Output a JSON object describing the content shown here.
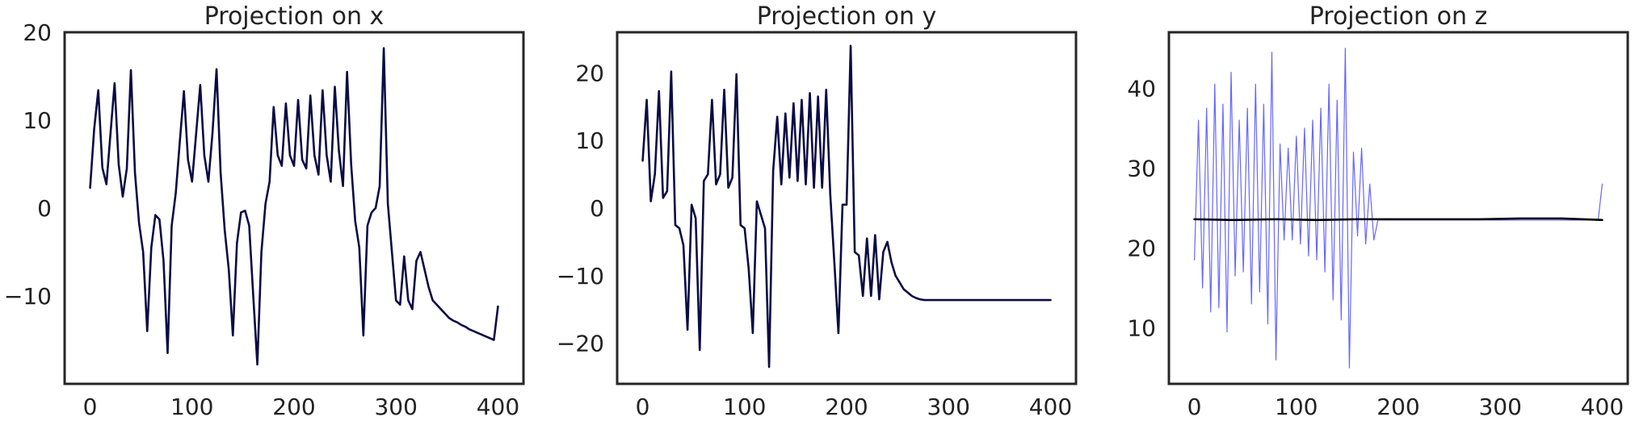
{
  "chart_data": [
    {
      "type": "line",
      "title": "Projection on x",
      "xlabel": "",
      "ylabel": "",
      "xlim": [
        -25,
        425
      ],
      "ylim": [
        -20,
        20
      ],
      "xticks": [
        0,
        100,
        200,
        300,
        400
      ],
      "yticks": [
        -10,
        0,
        10,
        20
      ],
      "xtick_labels": [
        "0",
        "100",
        "200",
        "300",
        "400"
      ],
      "ytick_labels": [
        "−10",
        "0",
        "10",
        "20"
      ],
      "grid": false,
      "series": [
        {
          "color": "#0b0b45",
          "x": [
            0,
            4,
            8,
            12,
            16,
            20,
            24,
            28,
            32,
            36,
            40,
            44,
            48,
            52,
            56,
            60,
            64,
            68,
            72,
            76,
            80,
            84,
            88,
            92,
            96,
            100,
            104,
            108,
            112,
            116,
            120,
            124,
            128,
            132,
            136,
            140,
            144,
            148,
            152,
            156,
            160,
            164,
            168,
            172,
            176,
            180,
            184,
            188,
            192,
            196,
            200,
            204,
            208,
            212,
            216,
            220,
            224,
            228,
            232,
            236,
            240,
            244,
            248,
            252,
            256,
            260,
            264,
            268,
            272,
            276,
            280,
            284,
            288,
            292,
            296,
            300,
            304,
            308,
            312,
            316,
            320,
            324,
            328,
            332,
            336,
            340,
            344,
            348,
            352,
            356,
            360,
            364,
            368,
            372,
            376,
            380,
            384,
            388,
            392,
            396,
            400
          ],
          "values": [
            2.3,
            9.0,
            13.4,
            4.6,
            2.7,
            8.5,
            14.2,
            5.0,
            1.3,
            4.5,
            15.7,
            4.0,
            -1.7,
            -5.0,
            -14.0,
            -4.5,
            -0.8,
            -1.3,
            -6.0,
            -16.5,
            -2.0,
            1.7,
            7.6,
            13.3,
            5.5,
            3.0,
            8.5,
            14.0,
            6.0,
            3.0,
            8.5,
            15.8,
            4.0,
            -2.5,
            -7.0,
            -14.5,
            -4.0,
            -0.5,
            -0.3,
            -2.0,
            -10.0,
            -17.8,
            -5.0,
            0.5,
            3.0,
            11.5,
            6.0,
            4.8,
            11.9,
            6.0,
            4.8,
            12.3,
            5.5,
            4.5,
            12.8,
            6.0,
            3.8,
            13.4,
            6.0,
            3.0,
            13.8,
            6.5,
            2.5,
            15.5,
            5.0,
            -1.5,
            -4.5,
            -14.5,
            -2.0,
            -0.5,
            0.0,
            2.5,
            18.2,
            0.5,
            -5.0,
            -10.5,
            -11.0,
            -5.5,
            -10.5,
            -11.5,
            -6.0,
            -5.0,
            -7.0,
            -9.0,
            -10.5,
            -11.0,
            -11.5,
            -12.0,
            -12.5,
            -12.8,
            -13.0,
            -13.3,
            -13.5,
            -13.8,
            -14.0,
            -14.2,
            -14.4,
            -14.6,
            -14.8,
            -15.0,
            -11.2
          ]
        }
      ]
    },
    {
      "type": "line",
      "title": "Projection on y",
      "xlabel": "",
      "ylabel": "",
      "xlim": [
        -25,
        425
      ],
      "ylim": [
        -26,
        26
      ],
      "xticks": [
        0,
        100,
        200,
        300,
        400
      ],
      "yticks": [
        -20,
        -10,
        0,
        10,
        20
      ],
      "xtick_labels": [
        "0",
        "100",
        "200",
        "300",
        "400"
      ],
      "ytick_labels": [
        "−20",
        "−10",
        "0",
        "10",
        "20"
      ],
      "grid": false,
      "series": [
        {
          "color": "#0b0b45",
          "x": [
            0,
            4,
            8,
            12,
            16,
            20,
            24,
            28,
            32,
            36,
            40,
            44,
            48,
            52,
            56,
            60,
            64,
            68,
            72,
            76,
            80,
            84,
            88,
            92,
            96,
            100,
            104,
            108,
            112,
            116,
            120,
            124,
            128,
            132,
            136,
            140,
            144,
            148,
            152,
            156,
            160,
            164,
            168,
            172,
            176,
            180,
            184,
            188,
            192,
            196,
            200,
            204,
            208,
            212,
            216,
            220,
            224,
            228,
            232,
            236,
            240,
            244,
            248,
            252,
            256,
            260,
            264,
            268,
            272,
            276,
            280,
            284,
            288,
            292,
            296,
            300,
            304,
            308,
            312,
            316,
            320,
            324,
            328,
            332,
            336,
            340,
            344,
            348,
            352,
            356,
            360,
            364,
            368,
            372,
            376,
            380,
            384,
            388,
            392,
            396,
            400
          ],
          "values": [
            7.0,
            16.0,
            1.0,
            5.0,
            17.3,
            1.5,
            2.5,
            20.2,
            -2.5,
            -3.0,
            -5.5,
            -18.0,
            0.5,
            -1.5,
            -21.0,
            4.0,
            5.0,
            16.0,
            3.5,
            5.0,
            17.5,
            3.0,
            4.5,
            19.8,
            -2.5,
            -3.0,
            -9.0,
            -18.5,
            1.0,
            -1.0,
            -3.0,
            -23.5,
            5.5,
            13.5,
            3.5,
            14.0,
            4.5,
            15.5,
            4.0,
            16.0,
            3.5,
            17.0,
            3.0,
            16.5,
            3.0,
            17.5,
            2.0,
            -8.0,
            -18.5,
            0.5,
            0.5,
            24.0,
            -6.5,
            -7.0,
            -13.0,
            -4.5,
            -13.0,
            -4.0,
            -13.5,
            -6.5,
            -5.0,
            -8.0,
            -10.0,
            -11.0,
            -12.0,
            -12.5,
            -13.0,
            -13.3,
            -13.5,
            -13.6,
            -13.6,
            -13.6,
            -13.6,
            -13.6,
            -13.6,
            -13.6,
            -13.6,
            -13.6,
            -13.6,
            -13.6,
            -13.6,
            -13.6,
            -13.6,
            -13.6,
            -13.6,
            -13.6,
            -13.6,
            -13.6,
            -13.6,
            -13.6,
            -13.6,
            -13.6,
            -13.6,
            -13.6,
            -13.6,
            -13.6,
            -13.6,
            -13.6,
            -13.6,
            -13.6,
            -13.6
          ]
        }
      ]
    },
    {
      "type": "line",
      "title": "Projection on z",
      "xlabel": "",
      "ylabel": "",
      "xlim": [
        -25,
        425
      ],
      "ylim": [
        3,
        47
      ],
      "xticks": [
        0,
        100,
        200,
        300,
        400
      ],
      "yticks": [
        10,
        20,
        30,
        40
      ],
      "xtick_labels": [
        "0",
        "100",
        "200",
        "300",
        "400"
      ],
      "ytick_labels": [
        "10",
        "20",
        "30",
        "40"
      ],
      "grid": false,
      "series": [
        {
          "color": "#6666ff",
          "x": [
            0,
            4,
            8,
            12,
            16,
            20,
            24,
            28,
            32,
            36,
            40,
            44,
            48,
            52,
            56,
            60,
            64,
            68,
            72,
            76,
            80,
            84,
            88,
            92,
            96,
            100,
            104,
            108,
            112,
            116,
            120,
            124,
            128,
            132,
            136,
            140,
            144,
            148,
            152,
            156,
            160,
            164,
            168,
            172,
            176,
            180,
            184,
            188,
            192,
            196,
            200,
            204,
            208,
            212,
            216,
            220,
            224,
            228,
            232,
            236,
            240,
            244,
            248,
            252,
            256,
            260,
            264,
            268,
            272,
            276,
            280,
            284,
            288,
            292,
            296,
            300,
            304,
            308,
            312,
            316,
            320,
            324,
            328,
            332,
            336,
            340,
            344,
            348,
            352,
            356,
            360,
            364,
            368,
            372,
            376,
            380,
            384,
            388,
            392,
            396,
            400
          ],
          "values": [
            18.5,
            36.0,
            15.0,
            37.5,
            12.0,
            40.5,
            12.5,
            38.0,
            9.5,
            42.0,
            16.5,
            36.0,
            17.0,
            37.5,
            13.0,
            40.5,
            14.5,
            38.0,
            10.5,
            44.5,
            6.0,
            33.0,
            21.0,
            32.5,
            21.0,
            34.0,
            20.5,
            35.0,
            19.0,
            36.0,
            18.5,
            37.5,
            17.0,
            40.5,
            13.5,
            38.5,
            11.0,
            45.0,
            5.0,
            32.0,
            21.5,
            32.5,
            20.5,
            28.0,
            21.0,
            23.5,
            23.5,
            23.5,
            23.5,
            23.5,
            23.5,
            23.5,
            23.5,
            23.5,
            23.5,
            23.5,
            23.5,
            23.5,
            23.5,
            23.5,
            23.5,
            23.5,
            23.5,
            23.5,
            23.5,
            23.5,
            23.5,
            23.5,
            23.5,
            23.5,
            23.5,
            23.5,
            23.5,
            23.5,
            23.5,
            23.5,
            23.5,
            23.5,
            23.5,
            23.5,
            23.5,
            23.5,
            23.5,
            23.5,
            23.5,
            23.5,
            23.5,
            23.5,
            23.5,
            23.5,
            23.5,
            23.5,
            23.5,
            23.5,
            23.5,
            23.5,
            23.5,
            23.5,
            23.5,
            23.5,
            28.0
          ]
        },
        {
          "color": "#000000",
          "x": [
            0,
            40,
            80,
            120,
            160,
            200,
            240,
            280,
            320,
            360,
            400
          ],
          "values": [
            23.6,
            23.5,
            23.6,
            23.5,
            23.6,
            23.6,
            23.6,
            23.6,
            23.7,
            23.7,
            23.5
          ]
        }
      ]
    }
  ]
}
